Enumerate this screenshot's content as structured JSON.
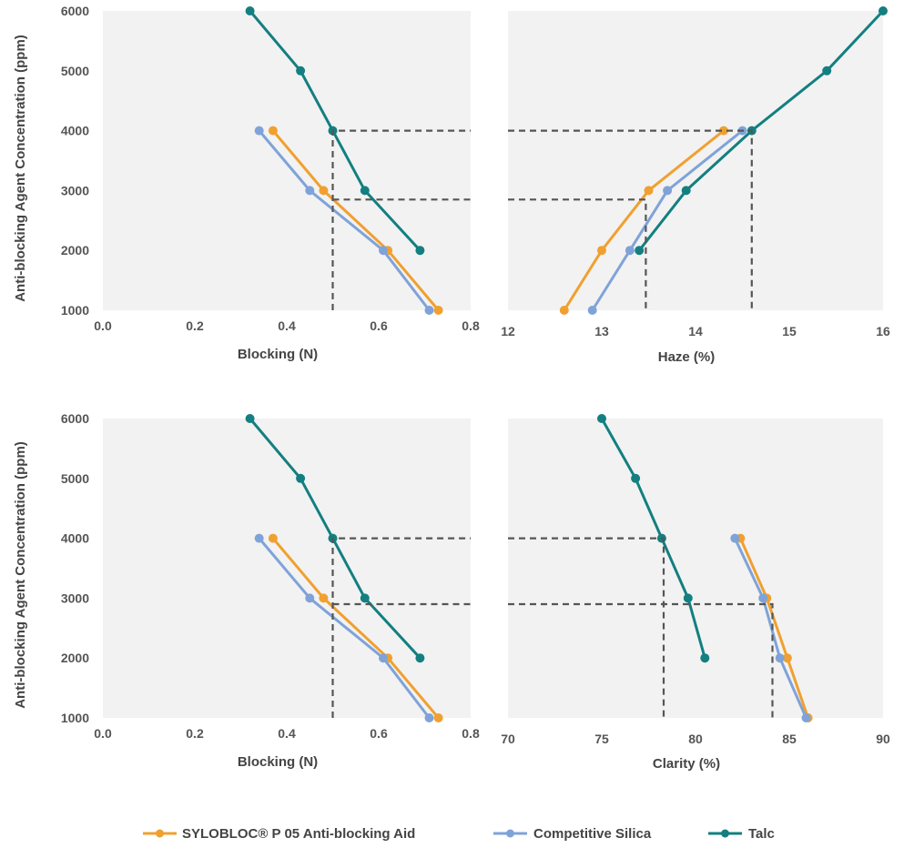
{
  "figure": {
    "ylabel": "Anti-blocking Agent Concentration  (ppm)",
    "colors": {
      "sylobloc": "#F0A030",
      "competitive": "#7FA3D8",
      "talc": "#137F80",
      "plot_bg": "#F2F2F2",
      "guide": "#555555"
    }
  },
  "legend": {
    "items": [
      {
        "key": "sylobloc",
        "label": "SYLOBLOC® P 05 Anti-blocking Aid"
      },
      {
        "key": "competitive",
        "label": "Competitive Silica"
      },
      {
        "key": "talc",
        "label": "Talc"
      }
    ]
  },
  "chart_data": [
    {
      "id": "blocking-top",
      "type": "line",
      "xlabel": "Blocking (N)",
      "ylabel": "Anti-blocking Agent Concentration  (ppm)",
      "xlim": [
        0.0,
        0.8
      ],
      "ylim": [
        1000,
        6000
      ],
      "xticks": [
        0.0,
        0.2,
        0.4,
        0.6,
        0.8
      ],
      "xtick_labels": [
        "0.0",
        "0.2",
        "0.4",
        "0.6",
        "0.8"
      ],
      "yticks": [
        1000,
        2000,
        3000,
        4000,
        5000,
        6000
      ],
      "ytick_labels": [
        "1000",
        "2000",
        "3000",
        "4000",
        "5000",
        "6000"
      ],
      "series": [
        {
          "key": "sylobloc",
          "name": "SYLOBLOC® P 05 Anti-blocking Aid",
          "points": [
            [
              0.73,
              1000
            ],
            [
              0.62,
              2000
            ],
            [
              0.48,
              3000
            ],
            [
              0.37,
              4000
            ]
          ]
        },
        {
          "key": "competitive",
          "name": "Competitive Silica",
          "points": [
            [
              0.71,
              1000
            ],
            [
              0.61,
              2000
            ],
            [
              0.45,
              3000
            ],
            [
              0.34,
              4000
            ]
          ]
        },
        {
          "key": "talc",
          "name": "Talc",
          "points": [
            [
              0.69,
              2000
            ],
            [
              0.57,
              3000
            ],
            [
              0.5,
              4000
            ],
            [
              0.43,
              5000
            ],
            [
              0.32,
              6000
            ]
          ]
        }
      ],
      "guides": [
        {
          "points": [
            [
              0.5,
              1000
            ],
            [
              0.5,
              4000
            ],
            [
              0.8,
              4000
            ]
          ]
        },
        {
          "points": [
            [
              0.5,
              2850
            ],
            [
              0.8,
              2850
            ]
          ]
        }
      ]
    },
    {
      "id": "haze-top",
      "type": "line",
      "xlabel": "Haze (%)",
      "xlim": [
        12,
        16
      ],
      "ylim": [
        1000,
        6000
      ],
      "xticks": [
        12,
        13,
        14,
        15,
        16
      ],
      "xtick_labels": [
        "12",
        "13",
        "14",
        "15",
        "16"
      ],
      "series": [
        {
          "key": "sylobloc",
          "name": "SYLOBLOC® P 05 Anti-blocking Aid",
          "points": [
            [
              12.6,
              1000
            ],
            [
              13.0,
              2000
            ],
            [
              13.5,
              3000
            ],
            [
              14.3,
              4000
            ]
          ]
        },
        {
          "key": "competitive",
          "name": "Competitive Silica",
          "points": [
            [
              12.9,
              1000
            ],
            [
              13.3,
              2000
            ],
            [
              13.7,
              3000
            ],
            [
              14.5,
              4000
            ]
          ]
        },
        {
          "key": "talc",
          "name": "Talc",
          "points": [
            [
              13.4,
              2000
            ],
            [
              13.9,
              3000
            ],
            [
              14.6,
              4000
            ],
            [
              15.4,
              5000
            ],
            [
              16.0,
              6000
            ]
          ]
        }
      ],
      "guides": [
        {
          "points": [
            [
              12,
              4000
            ],
            [
              14.6,
              4000
            ],
            [
              14.6,
              1000
            ]
          ]
        },
        {
          "points": [
            [
              12,
              2850
            ],
            [
              13.47,
              2850
            ],
            [
              13.47,
              1000
            ]
          ]
        }
      ]
    },
    {
      "id": "blocking-bottom",
      "type": "line",
      "xlabel": "Blocking (N)",
      "ylabel": "Anti-blocking Agent Concentration  (ppm)",
      "xlim": [
        0.0,
        0.8
      ],
      "ylim": [
        1000,
        6000
      ],
      "xticks": [
        0.0,
        0.2,
        0.4,
        0.6,
        0.8
      ],
      "xtick_labels": [
        "0.0",
        "0.2",
        "0.4",
        "0.6",
        "0.8"
      ],
      "yticks": [
        1000,
        2000,
        3000,
        4000,
        5000,
        6000
      ],
      "ytick_labels": [
        "1000",
        "2000",
        "3000",
        "4000",
        "5000",
        "6000"
      ],
      "series": [
        {
          "key": "sylobloc",
          "name": "SYLOBLOC® P 05 Anti-blocking Aid",
          "points": [
            [
              0.73,
              1000
            ],
            [
              0.62,
              2000
            ],
            [
              0.48,
              3000
            ],
            [
              0.37,
              4000
            ]
          ]
        },
        {
          "key": "competitive",
          "name": "Competitive Silica",
          "points": [
            [
              0.71,
              1000
            ],
            [
              0.61,
              2000
            ],
            [
              0.45,
              3000
            ],
            [
              0.34,
              4000
            ]
          ]
        },
        {
          "key": "talc",
          "name": "Talc",
          "points": [
            [
              0.69,
              2000
            ],
            [
              0.57,
              3000
            ],
            [
              0.5,
              4000
            ],
            [
              0.43,
              5000
            ],
            [
              0.32,
              6000
            ]
          ]
        }
      ],
      "guides": [
        {
          "points": [
            [
              0.5,
              1000
            ],
            [
              0.5,
              4000
            ],
            [
              0.8,
              4000
            ]
          ]
        },
        {
          "points": [
            [
              0.5,
              2900
            ],
            [
              0.8,
              2900
            ]
          ]
        }
      ]
    },
    {
      "id": "clarity-bottom",
      "type": "line",
      "xlabel": "Clarity (%)",
      "xlim": [
        70,
        90
      ],
      "ylim": [
        1000,
        6000
      ],
      "xticks": [
        70,
        75,
        80,
        85,
        90
      ],
      "xtick_labels": [
        "70",
        "75",
        "80",
        "85",
        "90"
      ],
      "series": [
        {
          "key": "sylobloc",
          "name": "SYLOBLOC® P 05 Anti-blocking Aid",
          "points": [
            [
              86.0,
              1000
            ],
            [
              84.9,
              2000
            ],
            [
              83.8,
              3000
            ],
            [
              82.4,
              4000
            ]
          ]
        },
        {
          "key": "competitive",
          "name": "Competitive Silica",
          "points": [
            [
              85.9,
              1000
            ],
            [
              84.5,
              2000
            ],
            [
              83.6,
              3000
            ],
            [
              82.1,
              4000
            ]
          ]
        },
        {
          "key": "talc",
          "name": "Talc",
          "points": [
            [
              80.5,
              2000
            ],
            [
              79.6,
              3000
            ],
            [
              78.2,
              4000
            ],
            [
              76.8,
              5000
            ],
            [
              75.0,
              6000
            ]
          ]
        }
      ],
      "guides": [
        {
          "points": [
            [
              70,
              4000
            ],
            [
              78.3,
              4000
            ],
            [
              78.3,
              1000
            ]
          ]
        },
        {
          "points": [
            [
              70,
              2900
            ],
            [
              84.1,
              2900
            ],
            [
              84.1,
              1000
            ]
          ]
        }
      ]
    }
  ]
}
